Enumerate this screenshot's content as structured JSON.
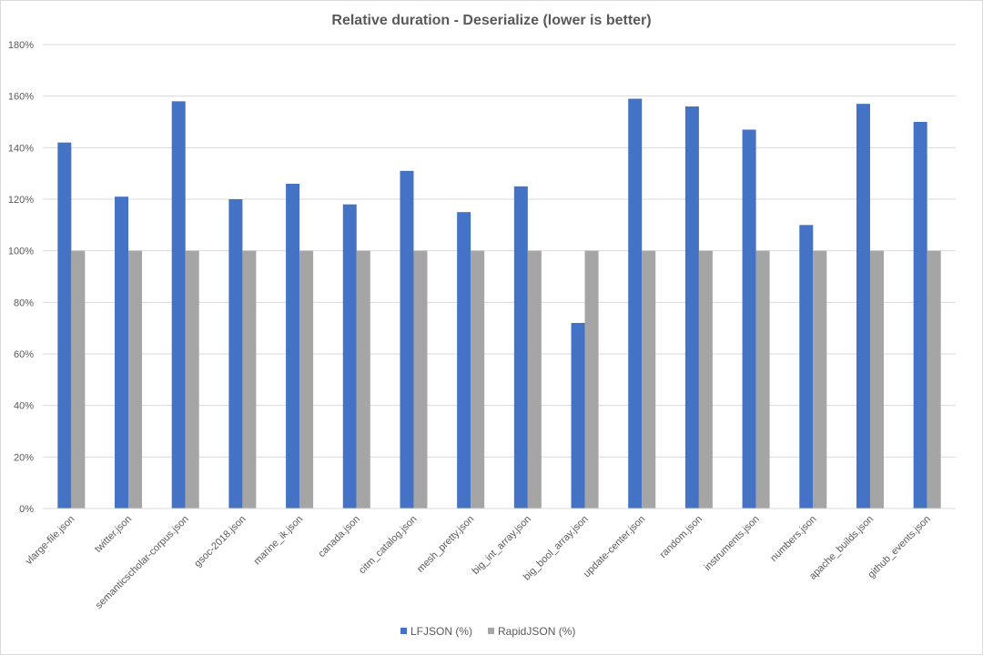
{
  "chart_data": {
    "type": "bar",
    "title": "Relative duration - Deserialize (lower is better)",
    "xlabel": "",
    "ylabel": "",
    "ylim": [
      0,
      180
    ],
    "yticks": [
      0,
      20,
      40,
      60,
      80,
      100,
      120,
      140,
      160,
      180
    ],
    "ytick_suffix": "%",
    "grid": true,
    "legend_position": "bottom",
    "categories": [
      "vlarge-file.json",
      "twitter.json",
      "semanticscholar-corpus.json",
      "gsoc-2018.json",
      "marine_ik.json",
      "canada.json",
      "citm_catalog.json",
      "mesh_pretty.json",
      "big_int_array.json",
      "big_bool_array.json",
      "update-center.json",
      "random.json",
      "instruments.json",
      "numbers.json",
      "apache_builds.json",
      "github_events.json"
    ],
    "series": [
      {
        "name": "LFJSON (%)",
        "color": "#4472c4",
        "values": [
          142,
          121,
          158,
          120,
          126,
          118,
          131,
          115,
          125,
          72,
          159,
          156,
          147,
          110,
          157,
          150
        ]
      },
      {
        "name": "RapidJSON (%)",
        "color": "#a5a5a5",
        "values": [
          100,
          100,
          100,
          100,
          100,
          100,
          100,
          100,
          100,
          100,
          100,
          100,
          100,
          100,
          100,
          100
        ]
      }
    ]
  }
}
